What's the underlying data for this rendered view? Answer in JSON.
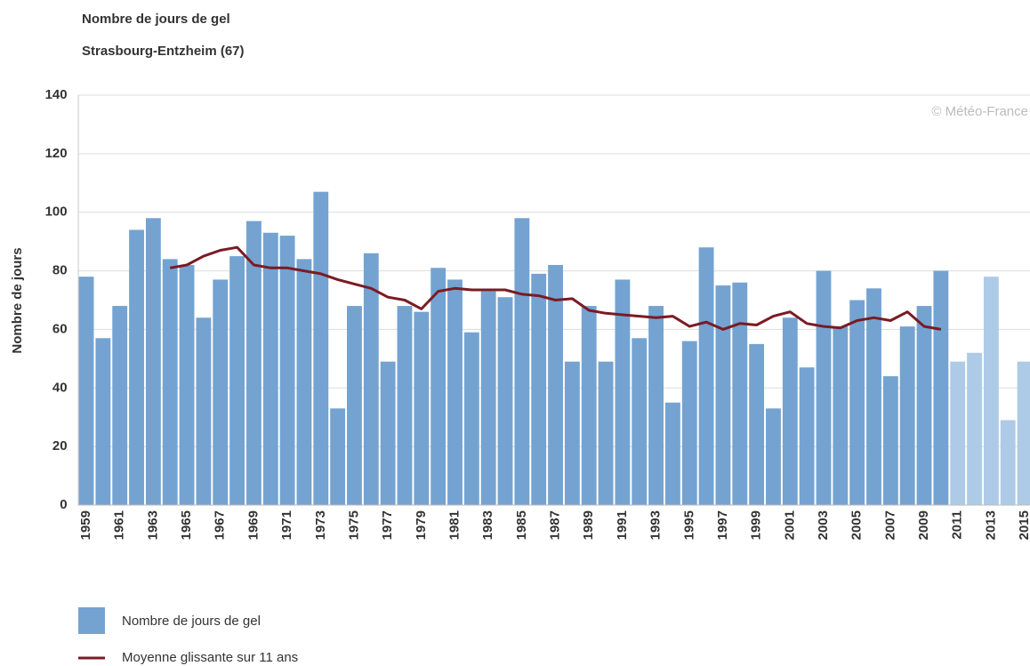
{
  "chart_data": {
    "type": "bar",
    "title": "Nombre de jours de gel",
    "subtitle": "Strasbourg-Entzheim (67)",
    "ylabel": "Nombre de jours",
    "credit": "© Météo-France",
    "categories": [
      "1959",
      null,
      "1961",
      null,
      "1963",
      null,
      "1965",
      null,
      "1967",
      null,
      "1969",
      null,
      "1971",
      null,
      "1973",
      null,
      "1975",
      null,
      "1977",
      null,
      "1979",
      null,
      "1981",
      null,
      "1983",
      null,
      "1985",
      null,
      "1987",
      null,
      "1989",
      null,
      "1991",
      null,
      "1993",
      null,
      "1995",
      null,
      "1997",
      null,
      "1999",
      null,
      "2001",
      null,
      "2003",
      null,
      "2005",
      null,
      "2007",
      null,
      "2009",
      null,
      "2011",
      null,
      "2013",
      null,
      "2015"
    ],
    "series": [
      {
        "name": "Nombre de jours de gel",
        "type": "bar",
        "color": "#74a3d1",
        "colors": [
          "#74a3d1",
          "#74a3d1",
          "#74a3d1",
          "#74a3d1",
          "#74a3d1",
          "#74a3d1",
          "#74a3d1",
          "#74a3d1",
          "#74a3d1",
          "#74a3d1",
          "#74a3d1",
          "#74a3d1",
          "#74a3d1",
          "#74a3d1",
          "#74a3d1",
          "#74a3d1",
          "#74a3d1",
          "#74a3d1",
          "#74a3d1",
          "#74a3d1",
          "#74a3d1",
          "#74a3d1",
          "#74a3d1",
          "#74a3d1",
          "#74a3d1",
          "#74a3d1",
          "#74a3d1",
          "#74a3d1",
          "#74a3d1",
          "#74a3d1",
          "#74a3d1",
          "#74a3d1",
          "#74a3d1",
          "#74a3d1",
          "#74a3d1",
          "#74a3d1",
          "#74a3d1",
          "#74a3d1",
          "#74a3d1",
          "#74a3d1",
          "#74a3d1",
          "#74a3d1",
          "#74a3d1",
          "#74a3d1",
          "#74a3d1",
          "#74a3d1",
          "#74a3d1",
          "#74a3d1",
          "#74a3d1",
          "#74a3d1",
          "#74a3d1",
          "#74a3d1",
          "#adcbe6",
          "#adcbe6",
          "#adcbe6",
          "#adcbe6",
          "#adcbe6"
        ],
        "values": [
          78,
          57,
          68,
          94,
          98,
          84,
          82,
          64,
          77,
          85,
          97,
          93,
          92,
          84,
          107,
          33,
          68,
          86,
          49,
          68,
          66,
          81,
          77,
          59,
          73,
          71,
          98,
          79,
          82,
          49,
          68,
          49,
          77,
          57,
          68,
          35,
          56,
          88,
          75,
          76,
          55,
          33,
          64,
          47,
          80,
          61,
          70,
          74,
          44,
          61,
          68,
          80,
          49,
          52,
          78,
          29,
          49
        ]
      },
      {
        "name": "Moyenne glissante sur 11 ans",
        "type": "line",
        "color": "#7a1b24",
        "values": [
          null,
          null,
          null,
          null,
          null,
          81,
          82,
          85,
          87,
          88,
          82,
          81,
          81,
          80,
          79,
          77,
          75.5,
          74,
          71,
          70,
          67,
          73,
          74,
          73.5,
          73.5,
          73.5,
          72,
          71.5,
          70,
          70.5,
          66.5,
          65.5,
          65,
          64.5,
          64,
          64.5,
          61,
          62.5,
          60,
          62,
          61.5,
          64.5,
          66,
          62,
          61,
          60.5,
          63,
          64,
          63,
          66,
          61,
          60,
          null,
          null,
          null,
          null,
          null
        ]
      }
    ],
    "ylim": [
      0,
      140
    ],
    "yticks": [
      0,
      20,
      40,
      60,
      80,
      100,
      120,
      140
    ],
    "grid": true
  }
}
